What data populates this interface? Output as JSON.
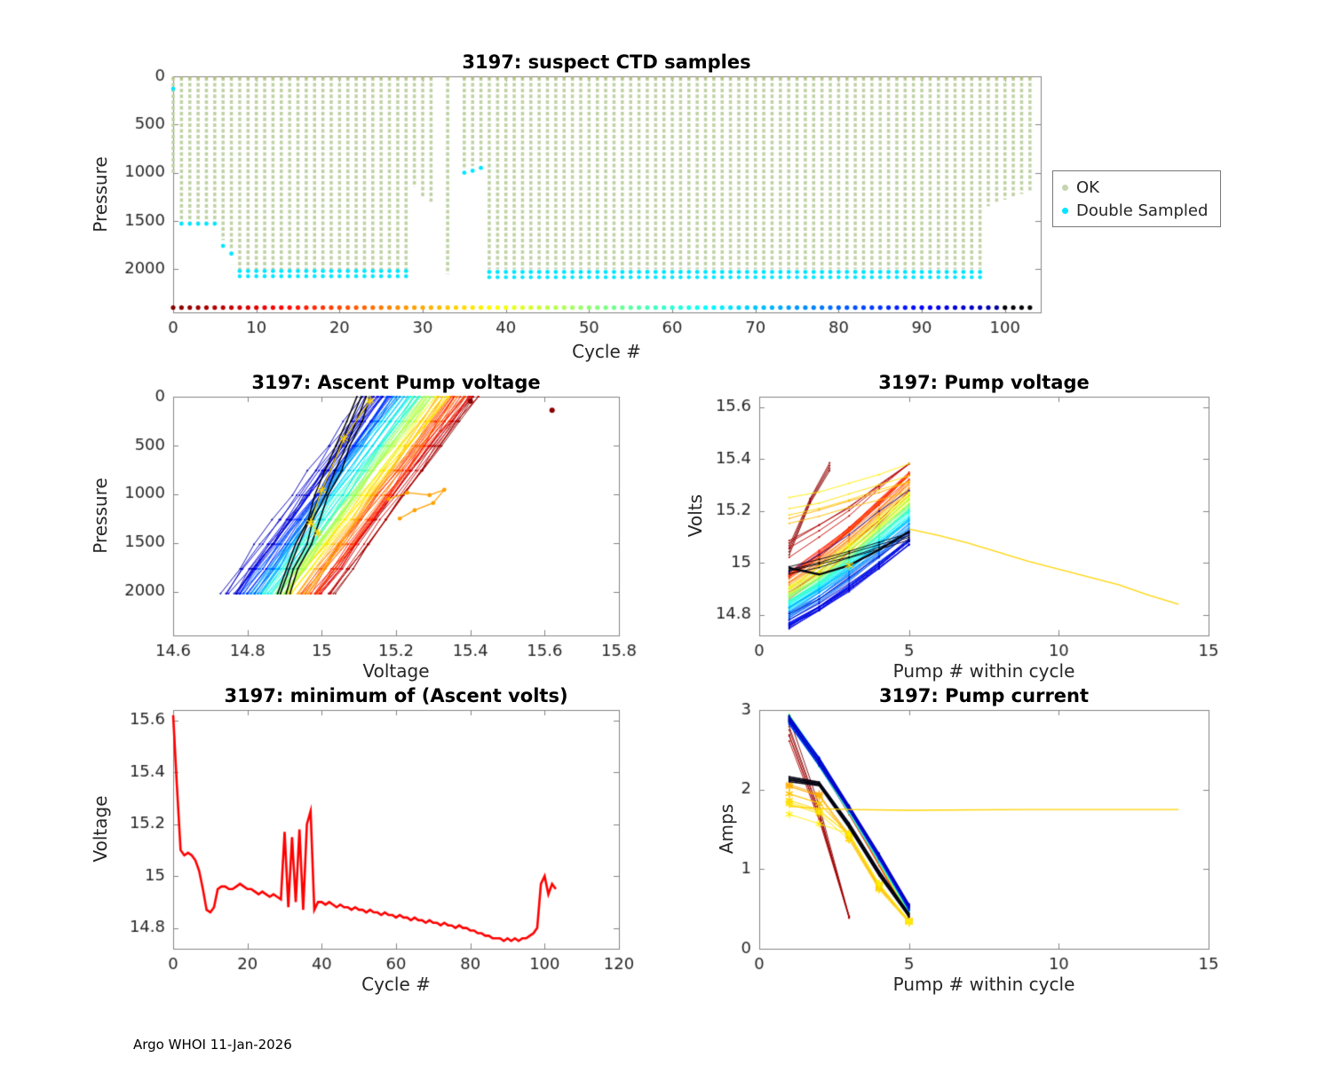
{
  "figure": {
    "footer": "Argo WHOI 11-Jan-2026"
  },
  "chart_data": [
    {
      "type": "scatter",
      "title": "3197: suspect CTD samples",
      "xlabel": "Cycle #",
      "ylabel": "Pressure",
      "xlim": [
        0,
        104.3
      ],
      "ylim": [
        0,
        2450
      ],
      "y_reverse": true,
      "xticks": [
        0,
        10,
        20,
        30,
        40,
        50,
        60,
        70,
        80,
        90,
        100
      ],
      "xtick_labels": [
        "0",
        "10",
        "20",
        "30",
        "40",
        "50",
        "60",
        "70",
        "80",
        "90",
        "100"
      ],
      "yticks": [
        0,
        500,
        1000,
        1500,
        2000
      ],
      "ytick_labels": [
        "0",
        "500",
        "1000",
        "1500",
        "2000"
      ],
      "legend": [
        {
          "label": "OK",
          "color": "#c5d4ae"
        },
        {
          "label": "Double Sampled",
          "color": "#00e6ff"
        }
      ],
      "legend_position": "right-outside",
      "ok_color": "#bfd2a4",
      "double_color": "#00e6ff",
      "top_marker_color": "#b9c37e",
      "marker_row_pressure": 2400,
      "cycles": 104,
      "max_pressure": [
        1000,
        1520,
        1520,
        1520,
        1520,
        1520,
        1700,
        1800,
        2000,
        2000,
        2000,
        2000,
        2000,
        2000,
        2000,
        2000,
        2000,
        2000,
        2000,
        2000,
        2000,
        2000,
        2000,
        2000,
        2000,
        2000,
        2000,
        2000,
        2000,
        1150,
        1250,
        1300,
        0,
        2050,
        0,
        950,
        930,
        900,
        2000,
        2000,
        2000,
        2000,
        2000,
        2000,
        2000,
        2000,
        2000,
        2000,
        2000,
        2000,
        2000,
        2000,
        2000,
        2000,
        2000,
        2000,
        2000,
        2000,
        2000,
        2000,
        2000,
        2000,
        2000,
        2000,
        2000,
        2000,
        2000,
        2000,
        2000,
        2000,
        2000,
        2000,
        2000,
        2000,
        2000,
        2000,
        2000,
        2000,
        2000,
        2000,
        2000,
        2000,
        2000,
        2000,
        2000,
        2000,
        2000,
        2000,
        2000,
        2000,
        2000,
        2000,
        2000,
        2000,
        2000,
        2000,
        2000,
        2000,
        1350,
        1300,
        1280,
        1250,
        1220,
        1200
      ],
      "double_sampled": [
        130,
        1530,
        1530,
        1530,
        1530,
        1530,
        1760,
        1840,
        2020,
        2020,
        2020,
        2020,
        2020,
        2020,
        2020,
        2020,
        2020,
        2020,
        2020,
        2020,
        2020,
        2020,
        2020,
        2020,
        2020,
        2020,
        2020,
        2020,
        2020,
        null,
        null,
        null,
        null,
        null,
        null,
        1000,
        980,
        950,
        2030,
        2030,
        2030,
        2030,
        2030,
        2030,
        2030,
        2030,
        2030,
        2030,
        2030,
        2030,
        2030,
        2030,
        2030,
        2030,
        2030,
        2030,
        2030,
        2030,
        2030,
        2030,
        2030,
        2030,
        2030,
        2030,
        2030,
        2030,
        2030,
        2030,
        2030,
        2030,
        2030,
        2030,
        2030,
        2030,
        2030,
        2030,
        2030,
        2030,
        2030,
        2030,
        2030,
        2030,
        2030,
        2030,
        2030,
        2030,
        2030,
        2030,
        2030,
        2030,
        2030,
        2030,
        2030,
        2030,
        2030,
        2030,
        2030,
        2030,
        null,
        null,
        null,
        null,
        null,
        null
      ]
    },
    {
      "type": "line",
      "title": "3197: Ascent Pump voltage",
      "xlabel": "Voltage",
      "ylabel": "Pressure",
      "xlim": [
        14.6,
        15.8
      ],
      "ylim": [
        0,
        2450
      ],
      "y_reverse": true,
      "xticks": [
        14.6,
        14.8,
        15,
        15.2,
        15.4,
        15.6,
        15.8
      ],
      "xtick_labels": [
        "14.6",
        "14.8",
        "15",
        "15.2",
        "15.4",
        "15.6",
        "15.8"
      ],
      "yticks": [
        0,
        500,
        1000,
        1500,
        2000
      ],
      "ytick_labels": [
        "0",
        "500",
        "1000",
        "1500",
        "2000"
      ],
      "bundle_model": {
        "cycles": 104,
        "p_bottom": 2020,
        "p_top": 0,
        "v_bottom_first": 15.02,
        "v_bottom_last": 14.74,
        "v_top_first": 15.42,
        "v_top_last": 15.12,
        "colormap": "jet-reversed",
        "last_cycles_black": 4
      },
      "accent_series": [
        {
          "color": "#ffd400",
          "marker": "star",
          "points": [
            [
              15.13,
              40
            ],
            [
              15.06,
              430
            ],
            [
              15.0,
              960
            ],
            [
              14.97,
              1290
            ],
            [
              14.99,
              1400
            ]
          ]
        },
        {
          "color": "#ffa000",
          "marker": "dot",
          "points": [
            [
              15.18,
              1050
            ],
            [
              15.23,
              985
            ],
            [
              15.29,
              1010
            ],
            [
              15.33,
              955
            ],
            [
              15.3,
              1090
            ],
            [
              15.25,
              1165
            ],
            [
              15.21,
              1250
            ]
          ]
        }
      ],
      "outlier_points": [
        {
          "x": 15.62,
          "y": 140,
          "color": "#8b0000"
        },
        {
          "x": 15.4,
          "y": 45,
          "color": "#8b0000"
        }
      ]
    },
    {
      "type": "line",
      "title": "3197: Pump voltage",
      "xlabel": "Pump # within cycle",
      "ylabel": "Volts",
      "xlim": [
        0,
        15
      ],
      "ylim": [
        14.72,
        15.64
      ],
      "xticks": [
        0,
        5,
        10,
        15
      ],
      "xtick_labels": [
        "0",
        "5",
        "10",
        "15"
      ],
      "yticks": [
        14.8,
        15,
        15.2,
        15.4,
        15.6
      ],
      "ytick_labels": [
        "14.8",
        "15",
        "15.2",
        "15.4",
        "15.6"
      ],
      "bundle_model": {
        "cycles": 104,
        "x_range": [
          1,
          5
        ],
        "rise_first": 0.4,
        "rise_last": 0.31,
        "high_v_rise": 0.13,
        "v1_clamp": [
          14.74,
          15.27
        ],
        "v_cap": 15.385,
        "colormap": "jet-reversed",
        "last_cycles_black": 4
      },
      "yellow_tail": {
        "color": "#ffd400",
        "points": [
          [
            5,
            15.13
          ],
          [
            6,
            15.105
          ],
          [
            7,
            15.075
          ],
          [
            8,
            15.04
          ],
          [
            9,
            15.005
          ],
          [
            10,
            14.975
          ],
          [
            11,
            14.945
          ],
          [
            12,
            14.915
          ],
          [
            13,
            14.875
          ],
          [
            14,
            14.84
          ]
        ]
      },
      "black_series": {
        "color": "#05050f",
        "points": [
          [
            1,
            14.98
          ],
          [
            2,
            14.955
          ],
          [
            3,
            14.99
          ],
          [
            4,
            15.05
          ],
          [
            5,
            15.12
          ]
        ],
        "stars": [
          [
            3,
            14.99
          ]
        ]
      }
    },
    {
      "type": "line",
      "title": "3197: minimum of (Ascent volts)",
      "xlabel": "Cycle #",
      "ylabel": "Voltage",
      "xlim": [
        0,
        120
      ],
      "ylim": [
        14.72,
        15.64
      ],
      "xticks": [
        0,
        20,
        40,
        60,
        80,
        100,
        120
      ],
      "xtick_labels": [
        "0",
        "20",
        "40",
        "60",
        "80",
        "100",
        "120"
      ],
      "yticks": [
        14.8,
        15,
        15.2,
        15.4,
        15.6
      ],
      "ytick_labels": [
        "14.8",
        "15",
        "15.2",
        "15.4",
        "15.6"
      ],
      "series": {
        "color": "#ff0000",
        "linewidth": 2.6,
        "y": [
          15.62,
          15.35,
          15.1,
          15.08,
          15.09,
          15.08,
          15.06,
          15.02,
          14.95,
          14.87,
          14.86,
          14.88,
          14.95,
          14.96,
          14.96,
          14.95,
          14.95,
          14.96,
          14.97,
          14.96,
          14.95,
          14.95,
          14.94,
          14.93,
          14.94,
          14.93,
          14.92,
          14.93,
          14.92,
          14.91,
          15.17,
          14.88,
          15.15,
          14.9,
          15.18,
          14.87,
          15.2,
          15.25,
          14.87,
          14.9,
          14.9,
          14.89,
          14.9,
          14.89,
          14.88,
          14.89,
          14.88,
          14.88,
          14.87,
          14.88,
          14.87,
          14.87,
          14.86,
          14.87,
          14.86,
          14.86,
          14.85,
          14.86,
          14.85,
          14.85,
          14.84,
          14.85,
          14.84,
          14.84,
          14.83,
          14.84,
          14.83,
          14.83,
          14.82,
          14.83,
          14.82,
          14.82,
          14.81,
          14.82,
          14.81,
          14.81,
          14.8,
          14.81,
          14.8,
          14.8,
          14.79,
          14.79,
          14.78,
          14.78,
          14.77,
          14.77,
          14.76,
          14.76,
          14.76,
          14.75,
          14.76,
          14.75,
          14.76,
          14.75,
          14.76,
          14.76,
          14.77,
          14.78,
          14.8,
          14.97,
          15.0,
          14.93,
          14.97,
          14.95
        ]
      }
    },
    {
      "type": "line",
      "title": "3197: Pump current",
      "xlabel": "Pump # within cycle",
      "ylabel": "Amps",
      "xlim": [
        0,
        15
      ],
      "ylim": [
        0,
        3
      ],
      "xticks": [
        0,
        5,
        10,
        15
      ],
      "xtick_labels": [
        "0",
        "5",
        "10",
        "15"
      ],
      "yticks": [
        0,
        1,
        2,
        3
      ],
      "ytick_labels": [
        "0",
        "1",
        "2",
        "3"
      ],
      "bundle_model": {
        "cycles": 104,
        "x_range": [
          1,
          5
        ],
        "start_first": 2.9,
        "start_last": 2.88,
        "end_first": 0.36,
        "end_last": 0.55,
        "colormap": "jet-reversed",
        "last_cycles_black": 4
      },
      "black_series_start": 2.1,
      "yellow_flat": {
        "color": "#ffd400",
        "points": [
          [
            1,
            1.79
          ],
          [
            2,
            1.76
          ],
          [
            3,
            1.75
          ],
          [
            5,
            1.74
          ],
          [
            9,
            1.75
          ],
          [
            14,
            1.75
          ]
        ]
      }
    }
  ]
}
